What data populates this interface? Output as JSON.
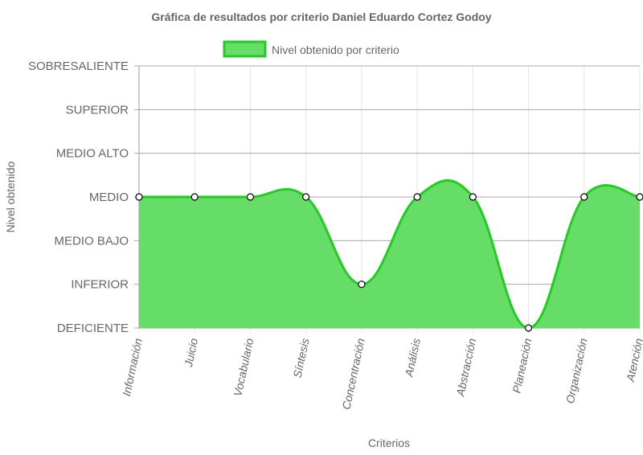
{
  "chart_data": {
    "type": "area",
    "title": "Gráfica de resultados por criterio Daniel Eduardo Cortez Godoy",
    "xlabel": "Criterios",
    "ylabel": "Nivel obtenido",
    "categories": [
      "Información",
      "Juicio",
      "Vocabulario",
      "Síntesis",
      "Concentración",
      "Análisis",
      "Abstracción",
      "Planeación",
      "Organización",
      "Atención"
    ],
    "y_levels": [
      "DEFICIENTE",
      "INFERIOR",
      "MEDIO BAJO",
      "MEDIO",
      "MEDIO ALTO",
      "SUPERIOR",
      "SOBRESALIENTE"
    ],
    "ylim": [
      0,
      6
    ],
    "series": [
      {
        "name": "Nivel obtenido por criterio",
        "values": [
          3,
          3,
          3,
          3,
          1,
          3,
          3,
          0,
          3,
          3
        ]
      }
    ],
    "legend": "top-center",
    "grid": true,
    "colors": {
      "fill": "#66dd66",
      "stroke": "#22cc22",
      "point_fill": "#ffffff",
      "point_stroke": "#000000",
      "grid": "#aaaaaa",
      "vgrid": "#e5e5e5",
      "text": "#666666"
    }
  }
}
